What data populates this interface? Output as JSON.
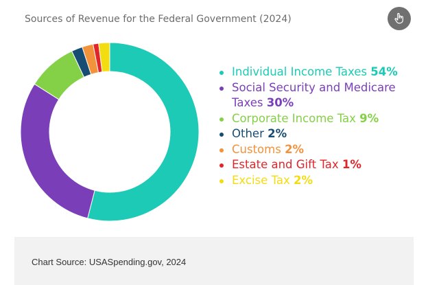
{
  "chart_data": {
    "type": "pie",
    "title": "Sources of Revenue for the Federal Government (2024)",
    "donut": true,
    "legend_position": "right",
    "slices": [
      {
        "label": "Individual Income Taxes",
        "value": 54,
        "display": "54%",
        "color": "#1ccab5"
      },
      {
        "label": "Social Security and Medicare Taxes",
        "value": 30,
        "display": "30%",
        "color": "#7a3fb8"
      },
      {
        "label": "Corporate Income Tax",
        "value": 9,
        "display": "9%",
        "color": "#84d046"
      },
      {
        "label": "Other",
        "value": 2,
        "display": "2%",
        "color": "#184d73"
      },
      {
        "label": "Customs",
        "value": 2,
        "display": "2%",
        "color": "#f2923b"
      },
      {
        "label": "Estate and Gift Tax",
        "value": 1,
        "display": "1%",
        "color": "#e0262b"
      },
      {
        "label": "Excise Tax",
        "value": 2,
        "display": "2%",
        "color": "#f3dc10"
      }
    ]
  },
  "toolbar": {
    "action_icon": "pointer-hand-icon"
  },
  "footer": {
    "source_text": "Chart Source: USASpending.gov, 2024"
  }
}
